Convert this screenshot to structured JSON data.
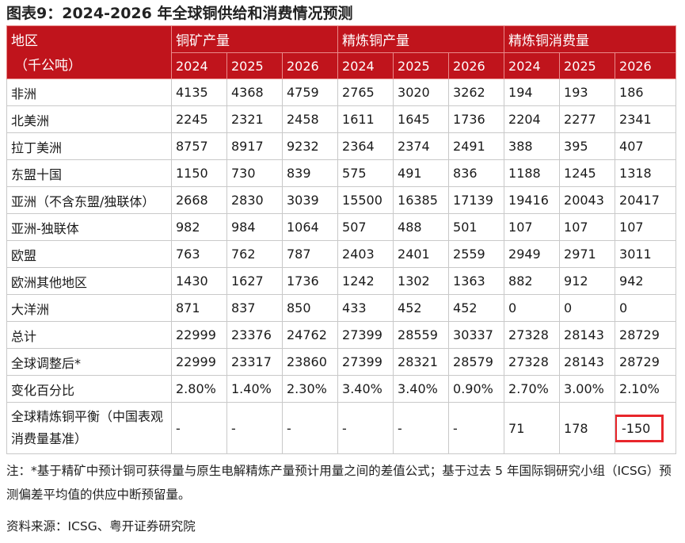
{
  "title": "图表9：2024-2026 年全球铜供给和消费情况预测",
  "header": {
    "region_line1": "地区",
    "region_line2": "（千公吨）",
    "groups": [
      "铜矿产量",
      "精炼铜产量",
      "精炼铜消费量"
    ],
    "years": [
      "2024",
      "2025",
      "2026",
      "2024",
      "2025",
      "2026",
      "2024",
      "2025",
      "2026"
    ]
  },
  "rows": [
    {
      "label": "非洲",
      "values": [
        "4135",
        "4368",
        "4759",
        "2765",
        "3020",
        "3262",
        "194",
        "193",
        "186"
      ]
    },
    {
      "label": "北美洲",
      "values": [
        "2245",
        "2321",
        "2458",
        "1611",
        "1645",
        "1736",
        "2204",
        "2277",
        "2341"
      ]
    },
    {
      "label": "拉丁美洲",
      "values": [
        "8757",
        "8917",
        "9232",
        "2364",
        "2374",
        "2491",
        "388",
        "395",
        "407"
      ]
    },
    {
      "label": "东盟十国",
      "values": [
        "1150",
        "730",
        "839",
        "575",
        "491",
        "836",
        "1188",
        "1245",
        "1318"
      ]
    },
    {
      "label": "亚洲（不含东盟/独联体）",
      "values": [
        "2668",
        "2830",
        "3039",
        "15500",
        "16385",
        "17139",
        "19416",
        "20043",
        "20417"
      ]
    },
    {
      "label": "亚洲-独联体",
      "values": [
        "982",
        "984",
        "1064",
        "507",
        "488",
        "501",
        "107",
        "107",
        "107"
      ]
    },
    {
      "label": "欧盟",
      "values": [
        "763",
        "762",
        "787",
        "2403",
        "2401",
        "2559",
        "2949",
        "2971",
        "3011"
      ]
    },
    {
      "label": "欧洲其他地区",
      "values": [
        "1430",
        "1627",
        "1736",
        "1242",
        "1302",
        "1363",
        "882",
        "912",
        "942"
      ]
    },
    {
      "label": "大洋洲",
      "values": [
        "871",
        "837",
        "850",
        "433",
        "452",
        "452",
        "0",
        "0",
        "0"
      ]
    },
    {
      "label": "总计",
      "values": [
        "22999",
        "23376",
        "24762",
        "27399",
        "28559",
        "30337",
        "27328",
        "28143",
        "28729"
      ]
    },
    {
      "label": "全球调整后*",
      "values": [
        "22999",
        "23317",
        "23860",
        "27399",
        "28321",
        "28579",
        "27328",
        "28143",
        "28729"
      ]
    },
    {
      "label": "变化百分比",
      "values": [
        "2.80%",
        "1.40%",
        "2.30%",
        "3.40%",
        "3.40%",
        "0.90%",
        "2.70%",
        "3.00%",
        "2.10%"
      ]
    },
    {
      "label": "全球精炼铜平衡（中国表观消费量基准）",
      "values": [
        "-",
        "-",
        "-",
        "-",
        "-",
        "-",
        "71",
        "178",
        "-150"
      ]
    }
  ],
  "note": "注：*基于精矿中预计铜可获得量与原生电解精炼产量预计用量之间的差值公式；基于过去 5 年国际铜研究小组（ICSG）预测偏差平均值的供应中断预留量。",
  "source": "资料来源：ICSG、粤开证券研究院",
  "highlight_color": "#e8262b",
  "header_color": "#c0141c"
}
